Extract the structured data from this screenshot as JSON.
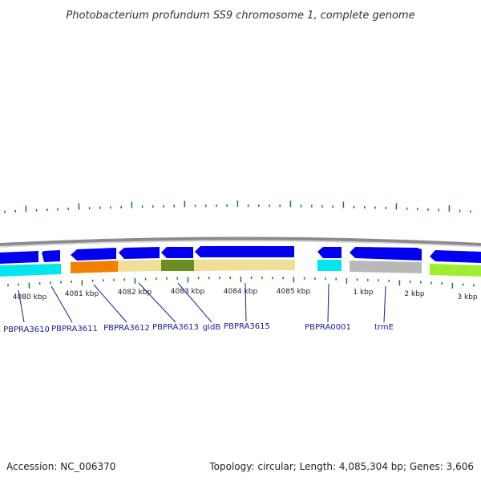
{
  "title": "Photobacterium profundum SS9 chromosome 1, complete genome",
  "footer": {
    "accession": "Accession: NC_006370",
    "summary": "Topology: circular; Length: 4,085,304 bp; Genes: 3,606"
  },
  "colors": {
    "backbone": "#8c8c8c",
    "forward_cds": "#0000ee",
    "tick": "#1f7a1f",
    "label": "#1a1aa0",
    "cyan": "#00e5ee",
    "orange": "#f08000",
    "khaki": "#efdf98",
    "olive": "#6b8e23",
    "gray": "#b8b8b8",
    "lime": "#a0ee30"
  },
  "tick_labels": [
    "4080 kbp",
    "4081 kbp",
    "4082 kbp",
    "4083 kbp",
    "4084 kbp",
    "4085 kbp",
    "1 kbp",
    "2 kbp",
    "3 kbp"
  ],
  "gene_labels": [
    "PBPRA3610",
    "PBPRA3611",
    "PBPRA3612",
    "PBPRA3613",
    "gidB",
    "PBPRA3615",
    "PBPRA0001",
    "trmE"
  ]
}
